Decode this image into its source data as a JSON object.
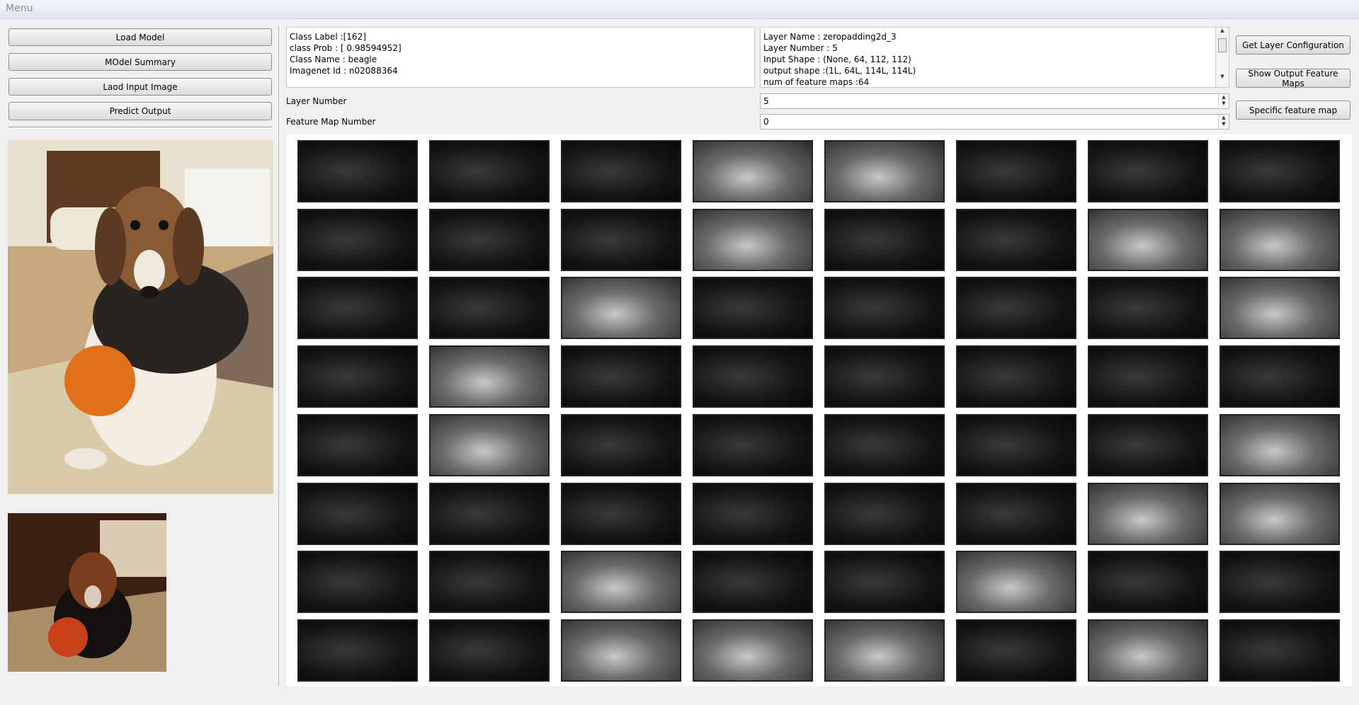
{
  "menu": {
    "title": "Menu"
  },
  "left_buttons": [
    "Load Model",
    "MOdel Summary",
    "Laod Input Image",
    "Predict Output"
  ],
  "prediction": [
    "Class Label :[162]",
    "class Prob : [ 0.98594952]",
    "Class Name : beagle",
    "Imagenet Id : n02088364"
  ],
  "layer_info": [
    "Layer Name : zeropadding2d_3",
    "Layer Number : 5",
    "Input Shape : (None, 64, 112, 112)",
    "output shape :(1L, 64L, 114L, 114L)",
    "num of feature maps :64"
  ],
  "right_buttons": [
    "Get Layer Configuration",
    "Show Output Feature Maps",
    "Specific feature map"
  ],
  "fields": [
    {
      "label": "Layer Number",
      "value": "5"
    },
    {
      "label": "Feature Map Number",
      "value": "0"
    }
  ]
}
